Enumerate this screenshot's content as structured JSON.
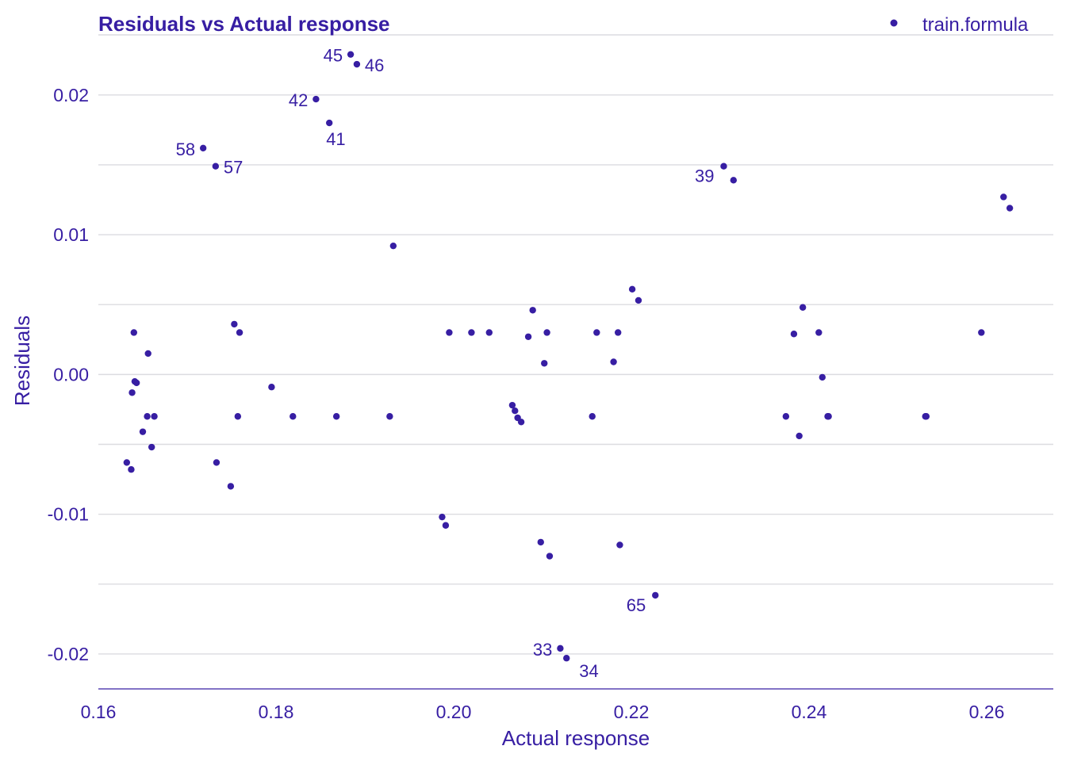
{
  "colors": {
    "text": "#371ea3",
    "points": "#371ea3",
    "grid": "#dcdce0",
    "background": "#ffffff"
  },
  "chart_data": {
    "type": "scatter",
    "title": "Residuals vs Actual response",
    "xlabel": "Actual response",
    "ylabel": "Residuals",
    "xlim": [
      0.16,
      0.2675
    ],
    "ylim": [
      -0.0225,
      0.0243
    ],
    "x_ticks": [
      0.16,
      0.18,
      0.2,
      0.22,
      0.24,
      0.26
    ],
    "x_tick_labels": [
      "0.16",
      "0.18",
      "0.20",
      "0.22",
      "0.24",
      "0.26"
    ],
    "y_ticks": [
      -0.02,
      -0.01,
      0.0,
      0.01,
      0.02
    ],
    "y_tick_labels": [
      "-0.02",
      "-0.01",
      "0.00",
      "0.01",
      "0.02"
    ],
    "y_minor_grid": [
      -0.015,
      -0.005,
      0.005,
      0.015
    ],
    "grid": "horizontal",
    "legend_position": "top-right",
    "series": [
      {
        "name": "train.formula",
        "points": [
          {
            "x": 0.1632,
            "y": -0.0063
          },
          {
            "x": 0.1637,
            "y": -0.0068
          },
          {
            "x": 0.1638,
            "y": -0.0013
          },
          {
            "x": 0.164,
            "y": 0.003
          },
          {
            "x": 0.1641,
            "y": -0.0005
          },
          {
            "x": 0.1643,
            "y": -0.0006
          },
          {
            "x": 0.165,
            "y": -0.0041
          },
          {
            "x": 0.1655,
            "y": -0.003
          },
          {
            "x": 0.1656,
            "y": 0.0015
          },
          {
            "x": 0.166,
            "y": -0.0052
          },
          {
            "x": 0.1663,
            "y": -0.003
          },
          {
            "x": 0.1718,
            "y": 0.0162,
            "label": "58",
            "label_side": "left"
          },
          {
            "x": 0.1732,
            "y": 0.0149,
            "label": "57",
            "label_side": "right"
          },
          {
            "x": 0.1733,
            "y": -0.0063
          },
          {
            "x": 0.1749,
            "y": -0.008
          },
          {
            "x": 0.1753,
            "y": 0.0036
          },
          {
            "x": 0.1757,
            "y": -0.003
          },
          {
            "x": 0.1759,
            "y": 0.003
          },
          {
            "x": 0.1795,
            "y": -0.0009
          },
          {
            "x": 0.1819,
            "y": -0.003
          },
          {
            "x": 0.1845,
            "y": 0.0197,
            "label": "42",
            "label_side": "left"
          },
          {
            "x": 0.186,
            "y": 0.018,
            "label": "41",
            "label_side": "below"
          },
          {
            "x": 0.1868,
            "y": -0.003
          },
          {
            "x": 0.1884,
            "y": 0.0229,
            "label": "45",
            "label_side": "left"
          },
          {
            "x": 0.1891,
            "y": 0.0222,
            "label": "46",
            "label_side": "right"
          },
          {
            "x": 0.1928,
            "y": -0.003
          },
          {
            "x": 0.1932,
            "y": 0.0092
          },
          {
            "x": 0.1987,
            "y": -0.0102
          },
          {
            "x": 0.1991,
            "y": -0.0108
          },
          {
            "x": 0.1995,
            "y": 0.003
          },
          {
            "x": 0.202,
            "y": 0.003
          },
          {
            "x": 0.204,
            "y": 0.003
          },
          {
            "x": 0.2066,
            "y": -0.0022
          },
          {
            "x": 0.2069,
            "y": -0.0026
          },
          {
            "x": 0.2072,
            "y": -0.0031
          },
          {
            "x": 0.2076,
            "y": -0.0034
          },
          {
            "x": 0.2084,
            "y": 0.0027
          },
          {
            "x": 0.2089,
            "y": 0.0046
          },
          {
            "x": 0.2098,
            "y": -0.012
          },
          {
            "x": 0.2102,
            "y": 0.0008
          },
          {
            "x": 0.2105,
            "y": 0.003
          },
          {
            "x": 0.2108,
            "y": -0.013
          },
          {
            "x": 0.212,
            "y": -0.0196,
            "label": "33",
            "label_side": "left"
          },
          {
            "x": 0.2127,
            "y": -0.0203,
            "label": "34",
            "label_side": "below-right"
          },
          {
            "x": 0.2156,
            "y": -0.003
          },
          {
            "x": 0.2161,
            "y": 0.003
          },
          {
            "x": 0.218,
            "y": 0.0009
          },
          {
            "x": 0.2185,
            "y": 0.003
          },
          {
            "x": 0.2187,
            "y": -0.0122
          },
          {
            "x": 0.2201,
            "y": 0.0061
          },
          {
            "x": 0.2208,
            "y": 0.0053
          },
          {
            "x": 0.2227,
            "y": -0.0158,
            "label": "65",
            "label_side": "below-left"
          },
          {
            "x": 0.2304,
            "y": 0.0149,
            "label": "39",
            "label_side": "below-left"
          },
          {
            "x": 0.2315,
            "y": 0.0139
          },
          {
            "x": 0.2374,
            "y": -0.003
          },
          {
            "x": 0.2383,
            "y": 0.0029
          },
          {
            "x": 0.2389,
            "y": -0.0044
          },
          {
            "x": 0.2393,
            "y": 0.0048
          },
          {
            "x": 0.2411,
            "y": 0.003
          },
          {
            "x": 0.2415,
            "y": -0.0002
          },
          {
            "x": 0.2421,
            "y": -0.003
          },
          {
            "x": 0.2422,
            "y": -0.003
          },
          {
            "x": 0.2531,
            "y": -0.003
          },
          {
            "x": 0.2532,
            "y": -0.003
          },
          {
            "x": 0.2594,
            "y": 0.003
          },
          {
            "x": 0.2619,
            "y": 0.0127
          },
          {
            "x": 0.2626,
            "y": 0.0119
          }
        ]
      }
    ]
  }
}
